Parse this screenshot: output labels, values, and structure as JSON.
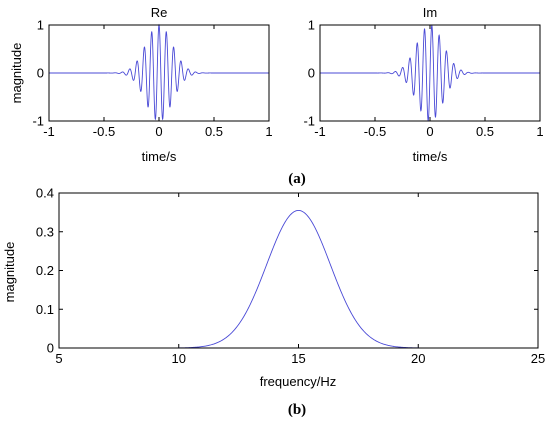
{
  "colors": {
    "line": "#4a4ad6",
    "axes": "#000000",
    "background": "#ffffff"
  },
  "chart_data": [
    {
      "type": "line",
      "title": "Re",
      "xlabel": "time/s",
      "ylabel": "magnitude",
      "xlim": [
        -1,
        1
      ],
      "ylim": [
        -1,
        1
      ],
      "xticks": [
        -1,
        -0.5,
        0,
        0.5,
        1
      ],
      "xtick_labels": [
        "-1",
        "-0.5",
        "0",
        "0.5",
        "1"
      ],
      "yticks": [
        -1,
        0,
        1
      ],
      "ytick_labels": [
        "-1",
        "0",
        "1"
      ],
      "grid": false,
      "series": [
        {
          "kind": "gabor-real",
          "center_time": 0,
          "carrier_hz": 15,
          "envelope_sigma_s": 0.12,
          "peak": 1
        }
      ],
      "caption": "(a)"
    },
    {
      "type": "line",
      "title": "Im",
      "xlabel": "time/s",
      "ylabel": "",
      "xlim": [
        -1,
        1
      ],
      "ylim": [
        -1,
        1
      ],
      "xticks": [
        -1,
        -0.5,
        0,
        0.5,
        1
      ],
      "xtick_labels": [
        "-1",
        "-0.5",
        "0",
        "0.5",
        "1"
      ],
      "yticks": [
        -1,
        0,
        1
      ],
      "ytick_labels": [
        "-1",
        "0",
        "1"
      ],
      "grid": false,
      "series": [
        {
          "kind": "gabor-imag",
          "center_time": 0,
          "carrier_hz": 15,
          "envelope_sigma_s": 0.12,
          "peak": 1
        }
      ]
    },
    {
      "type": "line",
      "title": "",
      "xlabel": "frequency/Hz",
      "ylabel": "magnitude",
      "xlim": [
        5,
        25
      ],
      "ylim": [
        0,
        0.4
      ],
      "xticks": [
        5,
        10,
        15,
        20,
        25
      ],
      "xtick_labels": [
        "5",
        "10",
        "15",
        "20",
        "25"
      ],
      "yticks": [
        0,
        0.1,
        0.2,
        0.3,
        0.4
      ],
      "ytick_labels": [
        "0",
        "0.1",
        "0.2",
        "0.3",
        "0.4"
      ],
      "grid": false,
      "series": [
        {
          "kind": "gaussian",
          "x_start": 5.3,
          "x_end": 24.6,
          "center_hz": 15,
          "sigma_hz": 1.33,
          "peak": 0.355
        }
      ],
      "caption": "(b)"
    }
  ]
}
